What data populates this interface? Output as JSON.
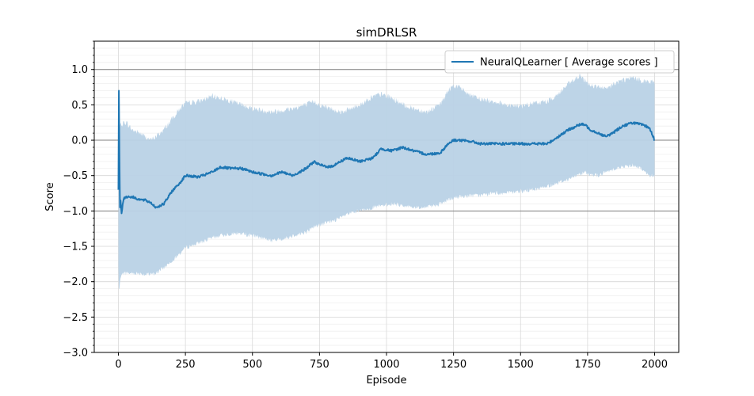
{
  "chart_data": {
    "type": "line",
    "title": "simDRLSR",
    "xlabel": "Episode",
    "ylabel": "Score",
    "xlim": [
      -90,
      2090
    ],
    "ylim": [
      -3.0,
      1.4
    ],
    "xticks": [
      0,
      250,
      500,
      750,
      1000,
      1250,
      1500,
      1750,
      2000
    ],
    "xtick_labels": [
      "0",
      "250",
      "500",
      "750",
      "1000",
      "1250",
      "1500",
      "1750",
      "2000"
    ],
    "yticks": [
      -3.0,
      -2.5,
      -2.0,
      -1.5,
      -1.0,
      -0.5,
      0.0,
      0.5,
      1.0
    ],
    "ytick_labels": [
      "−3.0",
      "−2.5",
      "−2.0",
      "−1.5",
      "−1.0",
      "−0.5",
      "0.0",
      "0.5",
      "1.0"
    ],
    "reference_lines": [
      -1.0,
      0.0,
      1.0
    ],
    "grid": true,
    "legend_position": "top-right",
    "colors": {
      "line": "#1f77b4",
      "band": "#b9d2e6",
      "grid": "#d9d9d9",
      "refline": "#808080"
    },
    "series": [
      {
        "name": "NeuralQLearner [ Average scores ]",
        "x": [
          0,
          2,
          4,
          6,
          8,
          12,
          20,
          30,
          50,
          80,
          100,
          120,
          140,
          170,
          200,
          230,
          250,
          300,
          350,
          380,
          420,
          460,
          500,
          540,
          570,
          610,
          650,
          700,
          730,
          750,
          790,
          830,
          850,
          900,
          950,
          980,
          1020,
          1060,
          1100,
          1150,
          1200,
          1230,
          1250,
          1270,
          1320,
          1350,
          1400,
          1450,
          1500,
          1550,
          1600,
          1640,
          1680,
          1720,
          1740,
          1760,
          1790,
          1820,
          1850,
          1880,
          1920,
          1950,
          1980,
          2000
        ],
        "y": [
          -0.7,
          0.7,
          -0.2,
          -0.95,
          -0.85,
          -1.02,
          -0.82,
          -0.8,
          -0.8,
          -0.84,
          -0.85,
          -0.88,
          -0.95,
          -0.9,
          -0.72,
          -0.6,
          -0.5,
          -0.52,
          -0.45,
          -0.38,
          -0.4,
          -0.4,
          -0.45,
          -0.48,
          -0.5,
          -0.45,
          -0.5,
          -0.4,
          -0.3,
          -0.35,
          -0.38,
          -0.3,
          -0.25,
          -0.3,
          -0.25,
          -0.12,
          -0.15,
          -0.1,
          -0.15,
          -0.2,
          -0.18,
          -0.05,
          0.0,
          0.0,
          -0.02,
          -0.05,
          -0.05,
          -0.05,
          -0.05,
          -0.05,
          -0.05,
          0.05,
          0.15,
          0.22,
          0.22,
          0.15,
          0.1,
          0.05,
          0.12,
          0.2,
          0.25,
          0.22,
          0.18,
          0.0
        ],
        "lower": [
          -1.8,
          -2.1,
          -2.1,
          -2.0,
          -1.95,
          -1.9,
          -1.88,
          -1.88,
          -1.88,
          -1.88,
          -1.9,
          -1.9,
          -1.88,
          -1.8,
          -1.7,
          -1.6,
          -1.52,
          -1.45,
          -1.38,
          -1.35,
          -1.32,
          -1.32,
          -1.35,
          -1.38,
          -1.42,
          -1.4,
          -1.35,
          -1.3,
          -1.22,
          -1.2,
          -1.15,
          -1.1,
          -1.05,
          -1.0,
          -0.95,
          -0.93,
          -0.9,
          -0.92,
          -0.95,
          -0.95,
          -0.9,
          -0.85,
          -0.82,
          -0.8,
          -0.78,
          -0.78,
          -0.75,
          -0.75,
          -0.72,
          -0.7,
          -0.65,
          -0.6,
          -0.55,
          -0.48,
          -0.45,
          -0.48,
          -0.5,
          -0.45,
          -0.4,
          -0.38,
          -0.35,
          -0.4,
          -0.5,
          -0.5
        ],
        "upper": [
          0.2,
          0.7,
          0.3,
          0.2,
          0.25,
          0.2,
          0.25,
          0.25,
          0.15,
          0.1,
          0.05,
          0.0,
          0.05,
          0.15,
          0.3,
          0.45,
          0.52,
          0.55,
          0.62,
          0.6,
          0.55,
          0.5,
          0.45,
          0.42,
          0.4,
          0.42,
          0.45,
          0.5,
          0.55,
          0.5,
          0.45,
          0.4,
          0.42,
          0.5,
          0.62,
          0.65,
          0.6,
          0.5,
          0.45,
          0.4,
          0.5,
          0.7,
          0.78,
          0.75,
          0.62,
          0.58,
          0.55,
          0.5,
          0.48,
          0.52,
          0.55,
          0.65,
          0.8,
          0.9,
          0.85,
          0.78,
          0.75,
          0.72,
          0.8,
          0.85,
          0.88,
          0.85,
          0.82,
          0.82
        ]
      }
    ]
  }
}
